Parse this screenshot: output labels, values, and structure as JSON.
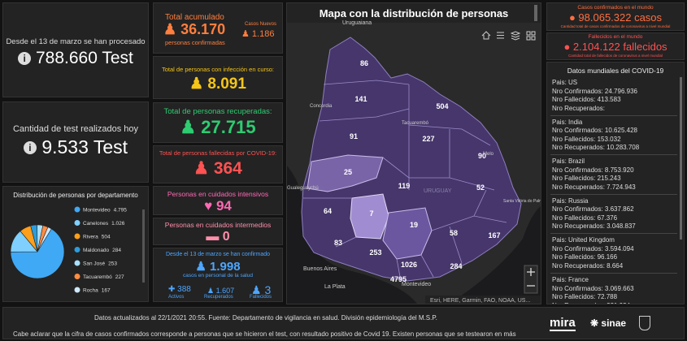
{
  "chart_data": {
    "type": "pie",
    "title": "Distribución de personas por departamento",
    "categories": [
      "Montevideo",
      "Canelones",
      "Rivera",
      "Maldonado",
      "San José",
      "Tacuarembó",
      "Rocha"
    ],
    "values": [
      4795,
      1026,
      504,
      284,
      253,
      227,
      167
    ],
    "value_labels": [
      "4.795",
      "1.026",
      "504",
      "284",
      "253",
      "227",
      "167"
    ],
    "colors": [
      "#3fa9f5",
      "#7fd0ff",
      "#ff9f1c",
      "#2d9cdb",
      "#a9e0ff",
      "#ff8c42",
      "#cde9ff"
    ]
  },
  "left": {
    "processed": {
      "label": "Desde el 13 de marzo se han procesado",
      "value": "788.660 Test"
    },
    "today": {
      "label": "Cantidad de test realizados hoy",
      "value": "9.533 Test"
    }
  },
  "stats": {
    "total": {
      "label": "Total acumulado",
      "value": "36.170",
      "sub": "personas confirmadas",
      "new_label": "Casos Nuevos",
      "new_value": "1.186"
    },
    "active": {
      "label": "Total de personas con infección en curso:",
      "value": "8.091"
    },
    "recovered": {
      "label": "Total de personas recuperadas:",
      "value": "27.715"
    },
    "deaths": {
      "label": "Total de personas fallecidas por COVID-19:",
      "value": "364"
    },
    "icu": {
      "label": "Personas en cuidados intensivos",
      "value": "94"
    },
    "intermediate": {
      "label": "Personas en cuidados intermedios",
      "value": "0"
    },
    "health_staff": {
      "label": "Desde el 13 de marzo se han confirmado",
      "value": "1.998",
      "sub": "casos en personal de la salud",
      "breakdown": [
        {
          "value": "388",
          "label": "Activos"
        },
        {
          "value": "1.607",
          "label": "Recuperados"
        },
        {
          "value": "3",
          "label": "Fallecidos"
        }
      ]
    }
  },
  "map": {
    "title": "Mapa con la distribución de personas",
    "regions": [
      "86",
      "141",
      "504",
      "91",
      "227",
      "90",
      "25",
      "119",
      "52",
      "64",
      "7",
      "19",
      "58",
      "167",
      "83",
      "253",
      "1026",
      "284",
      "4795"
    ],
    "places": [
      "Uruguaiana",
      "Concordia",
      "Tacuarembó",
      "Melo",
      "Gualeguaychú",
      "URUGUAY",
      "Santa Vitória do Palmar",
      "Buenos Aires",
      "La Plata",
      "Montevideo"
    ],
    "attribution": "Esri, HERE, Garmin, FAO, NOAA, US..."
  },
  "world": {
    "cases": {
      "label": "Casos confirmados en el mundo",
      "value": "98.065.322 casos",
      "sub": "Cantidad total de casos confirmados de coronavirus a nivel mundial"
    },
    "deaths": {
      "label": "Fallecidos en el mundo",
      "value": "2.104.122 fallecidos",
      "sub": "Cantidad total de fallecidos de coronavirus a nivel mundial"
    },
    "table": {
      "title": "Datos mundiales del COVID-19",
      "fields": [
        "Pais:",
        "Nro Confirmados:",
        "Nro Fallecidos:",
        "Nro Recuperados:"
      ],
      "rows": [
        [
          "US",
          "24.796.936",
          "413.583"
        ],
        [
          "India",
          "10.625.428",
          "153.032",
          "10.283.708"
        ],
        [
          "Brazil",
          "8.753.920",
          "215.243",
          "7.724.943"
        ],
        [
          "Russia",
          "3.637.862",
          "67.376",
          "3.048.837"
        ],
        [
          "United Kingdom",
          "3.594.094",
          "96.166",
          "8.664"
        ],
        [
          "France",
          "3.069.663",
          "72.788",
          "221.934"
        ]
      ]
    }
  },
  "footer": {
    "updated": "Datos actualizados al 22/1/2021 20:55. Fuente: Departamento de vigilancia en salud. División epidemiología del M.S.P.",
    "note": "Cabe aclarar que la cifra de casos confirmados corresponde a personas que se hicieron el test, con resultado positivo de Covid 19. Existen personas que se testearon en más",
    "logos": [
      "mira",
      "sinae"
    ]
  }
}
